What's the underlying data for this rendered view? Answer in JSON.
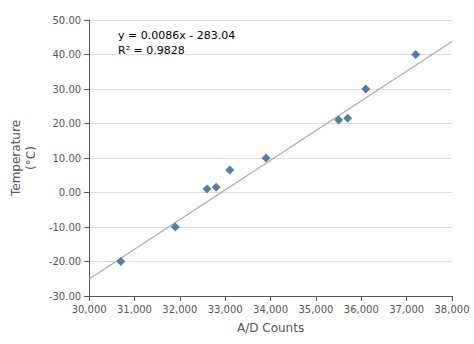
{
  "chart_data": {
    "type": "scatter",
    "xlabel": "A/D Counts",
    "ylabel": "Temperature\n(°C)",
    "annotation": "y = 0.0086x - 283.04\nR² = 0.9828",
    "series": [
      {
        "type": "line",
        "color": "#AAAAAA",
        "line_style": "solid",
        "x": [
          30000,
          38000
        ],
        "values": [
          -25.04,
          43.76
        ]
      },
      {
        "type": "scatter",
        "color": "#2E5D8E",
        "marker": "diamond",
        "x": [
          30700,
          31900,
          32600,
          32800,
          33100,
          33900,
          35500,
          35700,
          36100,
          37200
        ],
        "values": [
          -20.0,
          -10.0,
          1.0,
          1.5,
          6.5,
          10.0,
          21.0,
          21.5,
          30.0,
          40.0
        ]
      }
    ],
    "xlim": [
      30000,
      38000
    ],
    "ylim": [
      -30,
      50
    ],
    "xticks": [
      {
        "value": 30000,
        "label": "30,000"
      },
      {
        "value": 31000,
        "label": "31,000"
      },
      {
        "value": 32000,
        "label": "32,000"
      },
      {
        "value": 33000,
        "label": "33,000"
      },
      {
        "value": 34000,
        "label": "34,000"
      },
      {
        "value": 35000,
        "label": "35,000"
      },
      {
        "value": 36000,
        "label": "36,000"
      },
      {
        "value": 37000,
        "label": "37,000"
      },
      {
        "value": 38000,
        "label": "38,000"
      }
    ],
    "yticks": [
      {
        "value": -30,
        "label": "-30.00"
      },
      {
        "value": -20,
        "label": "-20.00"
      },
      {
        "value": -10,
        "label": "-10.00"
      },
      {
        "value": 0,
        "label": "0.00"
      },
      {
        "value": 10,
        "label": "10.00"
      },
      {
        "value": 20,
        "label": "20.00"
      },
      {
        "value": 30,
        "label": "30.00"
      },
      {
        "value": 40,
        "label": "40.00"
      },
      {
        "value": 50,
        "label": "50.00"
      }
    ],
    "grid": "y"
  }
}
